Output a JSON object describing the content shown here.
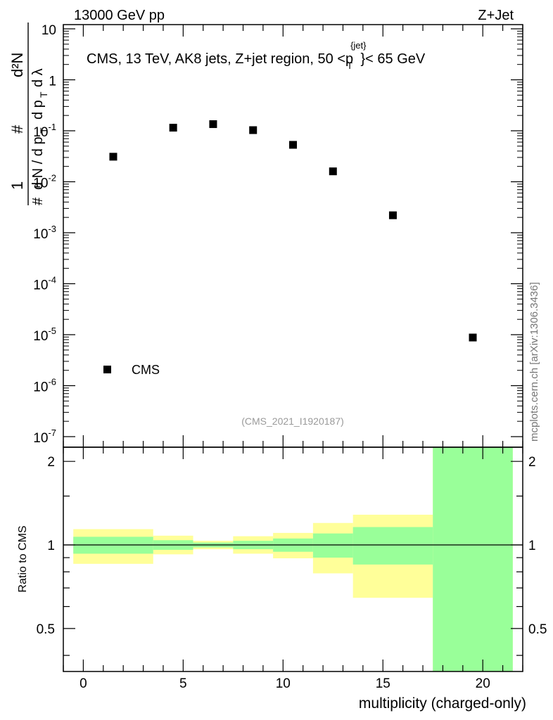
{
  "header": {
    "energy_label": "13000 GeV pp",
    "process_label": "Z+Jet"
  },
  "side_label": "mcplots.cern.ch [arXiv:1306.3436]",
  "analysis_id": "(CMS_2021_I1920187)",
  "colors": {
    "band_inner": "#99ff99",
    "band_outer": "#ffff99",
    "marker": "#000000",
    "analysis_id": "#9a9a9a"
  },
  "chart_data": [
    {
      "type": "scatter",
      "panel": "main",
      "title": "CMS, 13 TeV, AK8 jets, Z+jet region, 50 <p_T^{jet}< 65 GeV",
      "title_main": "CMS, 13 TeV, AK8 jets, Z+jet region, 50 <p",
      "title_sup": "{jet}",
      "title_sub": "T",
      "title_end": "}< 65 GeV",
      "ylabel": "1/dN/dp_T # d²N/dp_T dλ #",
      "yscale": "log",
      "ylim": [
        1e-07,
        10
      ],
      "y_tick_labels": [
        {
          "base": "10",
          "exp": "-7",
          "value": 1e-07
        },
        {
          "base": "10",
          "exp": "-6",
          "value": 1e-06
        },
        {
          "base": "10",
          "exp": "-5",
          "value": 1e-05
        },
        {
          "base": "10",
          "exp": "-4",
          "value": 0.0001
        },
        {
          "base": "10",
          "exp": "-3",
          "value": 0.001
        },
        {
          "base": "10",
          "exp": "-2",
          "value": 0.01
        },
        {
          "base": "10",
          "exp": "-1",
          "value": 0.1
        },
        {
          "base": "1",
          "exp": "",
          "value": 1
        },
        {
          "base": "10",
          "exp": "",
          "value": 10
        }
      ],
      "xlim": [
        -1,
        22
      ],
      "legend": [
        {
          "name": "CMS",
          "marker": "square",
          "placement": "bottom-left"
        }
      ],
      "series": [
        {
          "name": "CMS",
          "x": [
            1.5,
            4.5,
            6.5,
            8.5,
            10.5,
            12.5,
            15.5,
            19.5
          ],
          "y": [
            0.031,
            0.115,
            0.135,
            0.103,
            0.053,
            0.016,
            0.0022,
            8.8e-06
          ]
        }
      ]
    },
    {
      "type": "area",
      "panel": "ratio",
      "ylabel": "Ratio to CMS",
      "xlabel": "multiplicity (charged-only)",
      "xlim": [
        -1,
        22
      ],
      "ylim": [
        0.35,
        2.25
      ],
      "x_ticks": [
        0,
        5,
        10,
        15,
        20
      ],
      "x_tick_labels": [
        "0",
        "5",
        "10",
        "15",
        "20"
      ],
      "y_ticks": [
        0.5,
        1,
        2
      ],
      "y_tick_labels": [
        "0.5",
        "1",
        "2"
      ],
      "reference_line": 1,
      "bins": [
        {
          "lo": -0.5,
          "hi": 3.5,
          "inner": [
            0.93,
            1.07
          ],
          "outer": [
            0.855,
            1.14
          ]
        },
        {
          "lo": 3.5,
          "hi": 5.5,
          "inner": [
            0.96,
            1.04
          ],
          "outer": [
            0.925,
            1.08
          ]
        },
        {
          "lo": 5.5,
          "hi": 7.5,
          "inner": [
            0.98,
            1.02
          ],
          "outer": [
            0.965,
            1.035
          ]
        },
        {
          "lo": 7.5,
          "hi": 9.5,
          "inner": [
            0.965,
            1.035
          ],
          "outer": [
            0.93,
            1.075
          ]
        },
        {
          "lo": 9.5,
          "hi": 11.5,
          "inner": [
            0.945,
            1.055
          ],
          "outer": [
            0.895,
            1.105
          ]
        },
        {
          "lo": 11.5,
          "hi": 13.5,
          "inner": [
            0.9,
            1.1
          ],
          "outer": [
            0.79,
            1.2
          ]
        },
        {
          "lo": 13.5,
          "hi": 17.5,
          "inner": [
            0.85,
            1.16
          ],
          "outer": [
            0.645,
            1.285
          ]
        },
        {
          "lo": 17.5,
          "hi": 21.5,
          "inner": [
            0.35,
            2.25
          ],
          "outer": [
            0.35,
            2.25
          ]
        }
      ]
    }
  ]
}
